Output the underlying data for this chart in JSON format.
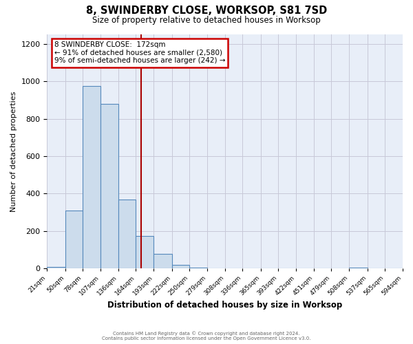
{
  "title": "8, SWINDERBY CLOSE, WORKSOP, S81 7SD",
  "subtitle": "Size of property relative to detached houses in Worksop",
  "xlabel": "Distribution of detached houses by size in Worksop",
  "ylabel": "Number of detached properties",
  "bar_color": "#ccdcec",
  "bar_edge_color": "#5588bb",
  "bin_edges": [
    21,
    50,
    78,
    107,
    136,
    164,
    193,
    222,
    250,
    279,
    308,
    336,
    365,
    393,
    422,
    451,
    479,
    508,
    537,
    565,
    594
  ],
  "bin_counts": [
    10,
    310,
    975,
    880,
    370,
    175,
    80,
    20,
    5,
    0,
    0,
    0,
    0,
    0,
    0,
    0,
    0,
    5,
    0,
    0
  ],
  "property_size": 172,
  "vline_color": "#aa0000",
  "annotation_box_edge_color": "#cc0000",
  "annotation_text_line1": "8 SWINDERBY CLOSE:  172sqm",
  "annotation_text_line2": "← 91% of detached houses are smaller (2,580)",
  "annotation_text_line3": "9% of semi-detached houses are larger (242) →",
  "ylim": [
    0,
    1250
  ],
  "yticks": [
    0,
    200,
    400,
    600,
    800,
    1000,
    1200
  ],
  "tick_labels": [
    "21sqm",
    "50sqm",
    "78sqm",
    "107sqm",
    "136sqm",
    "164sqm",
    "193sqm",
    "222sqm",
    "250sqm",
    "279sqm",
    "308sqm",
    "336sqm",
    "365sqm",
    "393sqm",
    "422sqm",
    "451sqm",
    "479sqm",
    "508sqm",
    "537sqm",
    "565sqm",
    "594sqm"
  ],
  "footer_line1": "Contains HM Land Registry data © Crown copyright and database right 2024.",
  "footer_line2": "Contains public sector information licensed under the Open Government Licence v3.0.",
  "background_color": "#ffffff",
  "plot_bg_color": "#e8eef8",
  "grid_color": "#c8c8d8"
}
